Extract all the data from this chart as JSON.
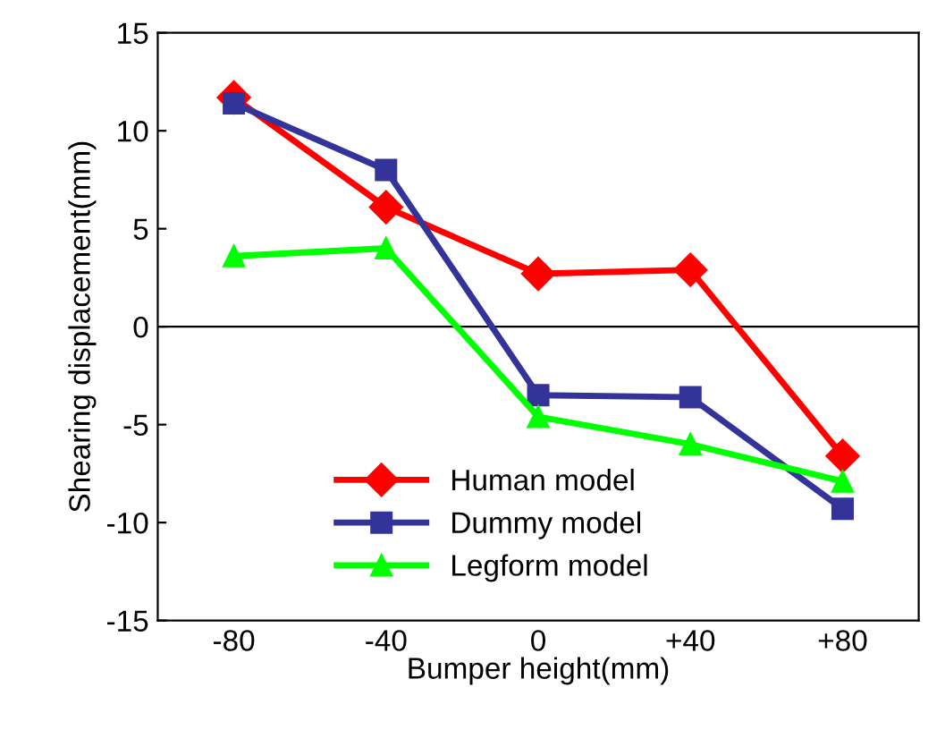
{
  "chart_data": {
    "type": "line",
    "xlabel": "Bumper height(mm)",
    "ylabel": "Shearing displacement(mm)",
    "categories": [
      "-80",
      "-40",
      "0",
      "+40",
      "+80"
    ],
    "series": [
      {
        "name": "Human model",
        "color": "#ff0000",
        "marker": "diamond",
        "values": [
          11.7,
          6.1,
          2.7,
          2.9,
          -6.6
        ]
      },
      {
        "name": "Dummy model",
        "color": "#333399",
        "marker": "square",
        "values": [
          11.4,
          8.0,
          -3.5,
          -3.6,
          -9.3
        ]
      },
      {
        "name": "Legform model",
        "color": "#00ff00",
        "marker": "triangle",
        "values": [
          3.6,
          4.0,
          -4.6,
          -6.0,
          -7.9
        ]
      }
    ],
    "ylim": [
      -15,
      15
    ],
    "yticks": [
      -15,
      -10,
      -5,
      0,
      5,
      10,
      15
    ],
    "ref_lines": [
      {
        "axis": "y",
        "value": 0,
        "color": "#000000"
      }
    ],
    "grid": false,
    "legend": "bottom left",
    "line_style": "solid"
  }
}
